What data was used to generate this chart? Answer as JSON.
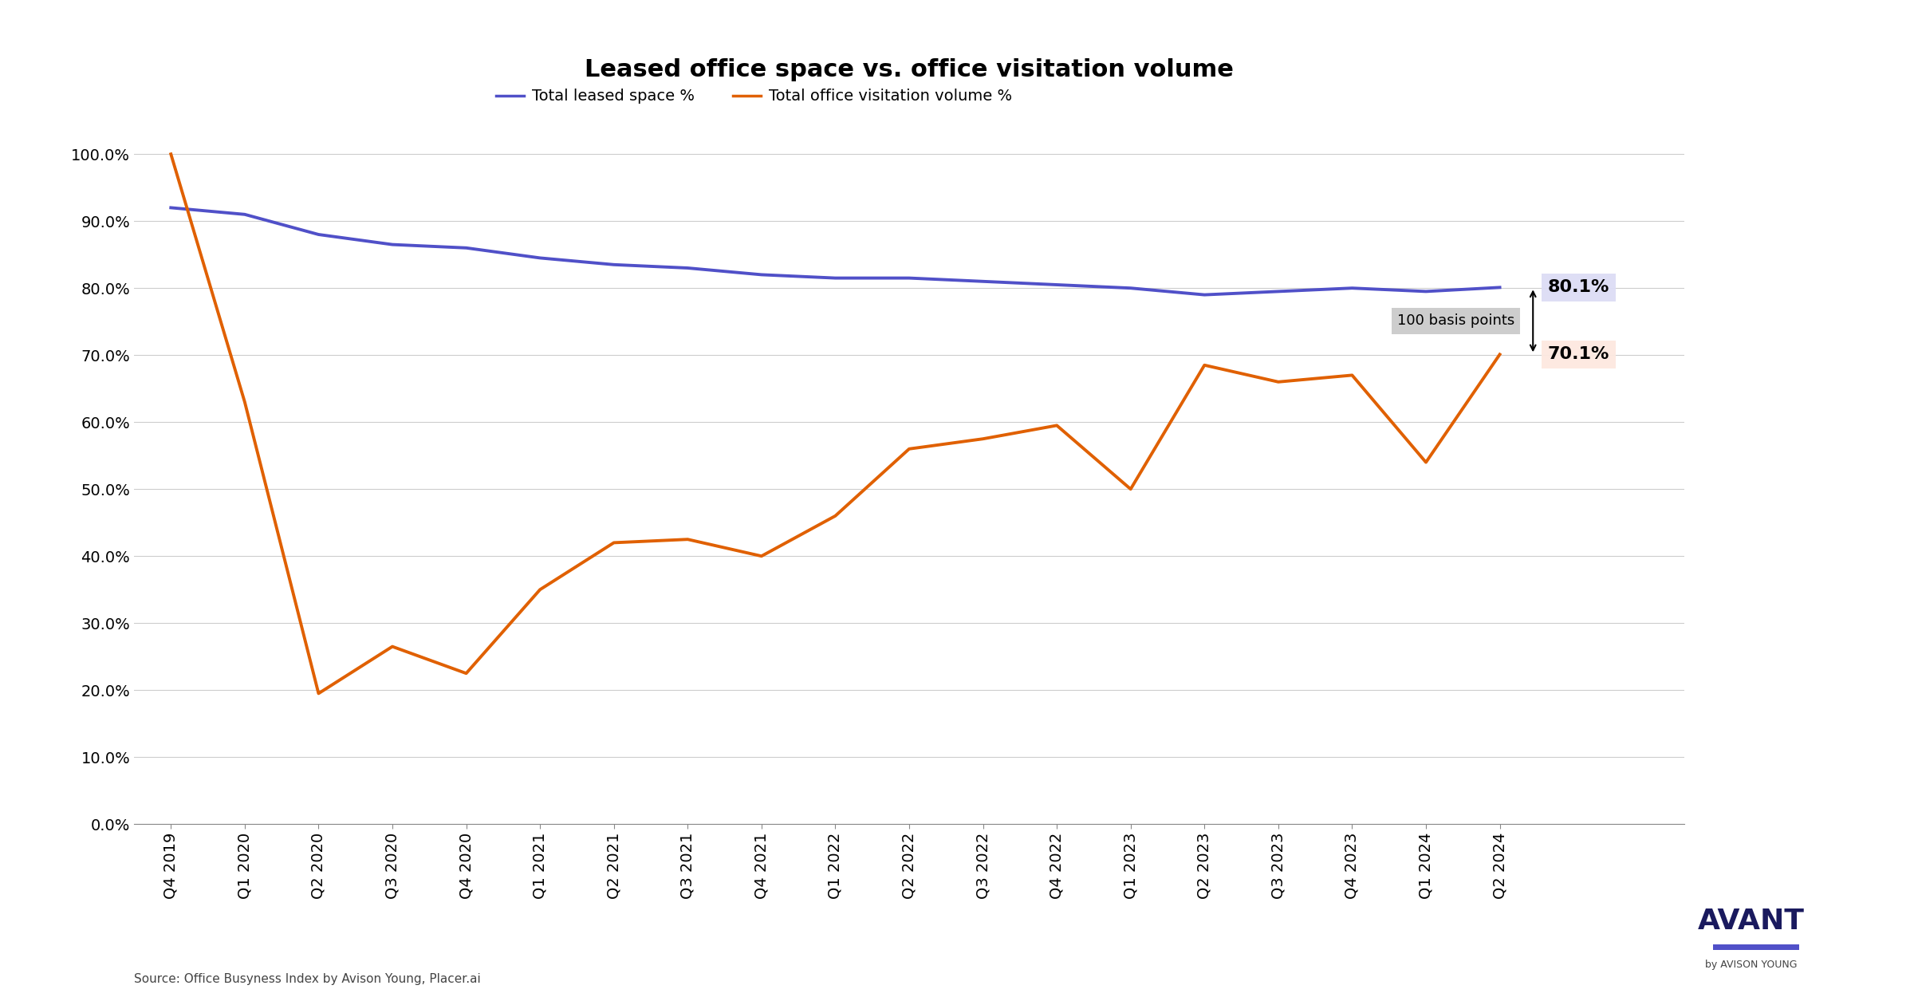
{
  "title": "Leased office space vs. office visitation volume",
  "legend_labels": [
    "Total leased space %",
    "Total office visitation volume %"
  ],
  "legend_colors": [
    "#5050c8",
    "#e06000"
  ],
  "source_text": "Source: Office Busyness Index by Avison Young, Placer.ai",
  "x_labels": [
    "Q4 2019",
    "Q1 2020",
    "Q2 2020",
    "Q3 2020",
    "Q4 2020",
    "Q1 2021",
    "Q2 2021",
    "Q3 2021",
    "Q4 2021",
    "Q1 2022",
    "Q2 2022",
    "Q3 2022",
    "Q4 2022",
    "Q1 2023",
    "Q2 2023",
    "Q3 2023",
    "Q4 2023",
    "Q1 2024",
    "Q2 2024"
  ],
  "leased_space": [
    92.0,
    91.0,
    88.0,
    86.5,
    86.0,
    84.5,
    83.5,
    83.0,
    82.0,
    81.5,
    81.5,
    81.0,
    80.5,
    80.0,
    79.0,
    79.5,
    80.0,
    79.5,
    80.1
  ],
  "visitation_volume": [
    100.0,
    63.0,
    19.5,
    26.5,
    22.5,
    35.0,
    42.0,
    42.5,
    40.0,
    46.0,
    56.0,
    57.5,
    59.5,
    50.0,
    68.5,
    66.0,
    67.0,
    54.0,
    70.1
  ],
  "leased_color": "#5050c8",
  "visitation_color": "#e06000",
  "ylim": [
    0.0,
    105.0
  ],
  "yticks": [
    0.0,
    10.0,
    20.0,
    30.0,
    40.0,
    50.0,
    60.0,
    70.0,
    80.0,
    90.0,
    100.0
  ],
  "annotation_text": "100 basis points",
  "end_label_leased": "80.1%",
  "end_label_visitation": "70.1%",
  "bg_leased_label": "#ddddf5",
  "bg_visitation_label": "#fde8e0",
  "bg_annotation": "#c8c8c8",
  "avant_color": "#1a1a5e",
  "avant_bar_color": "#5050c8"
}
